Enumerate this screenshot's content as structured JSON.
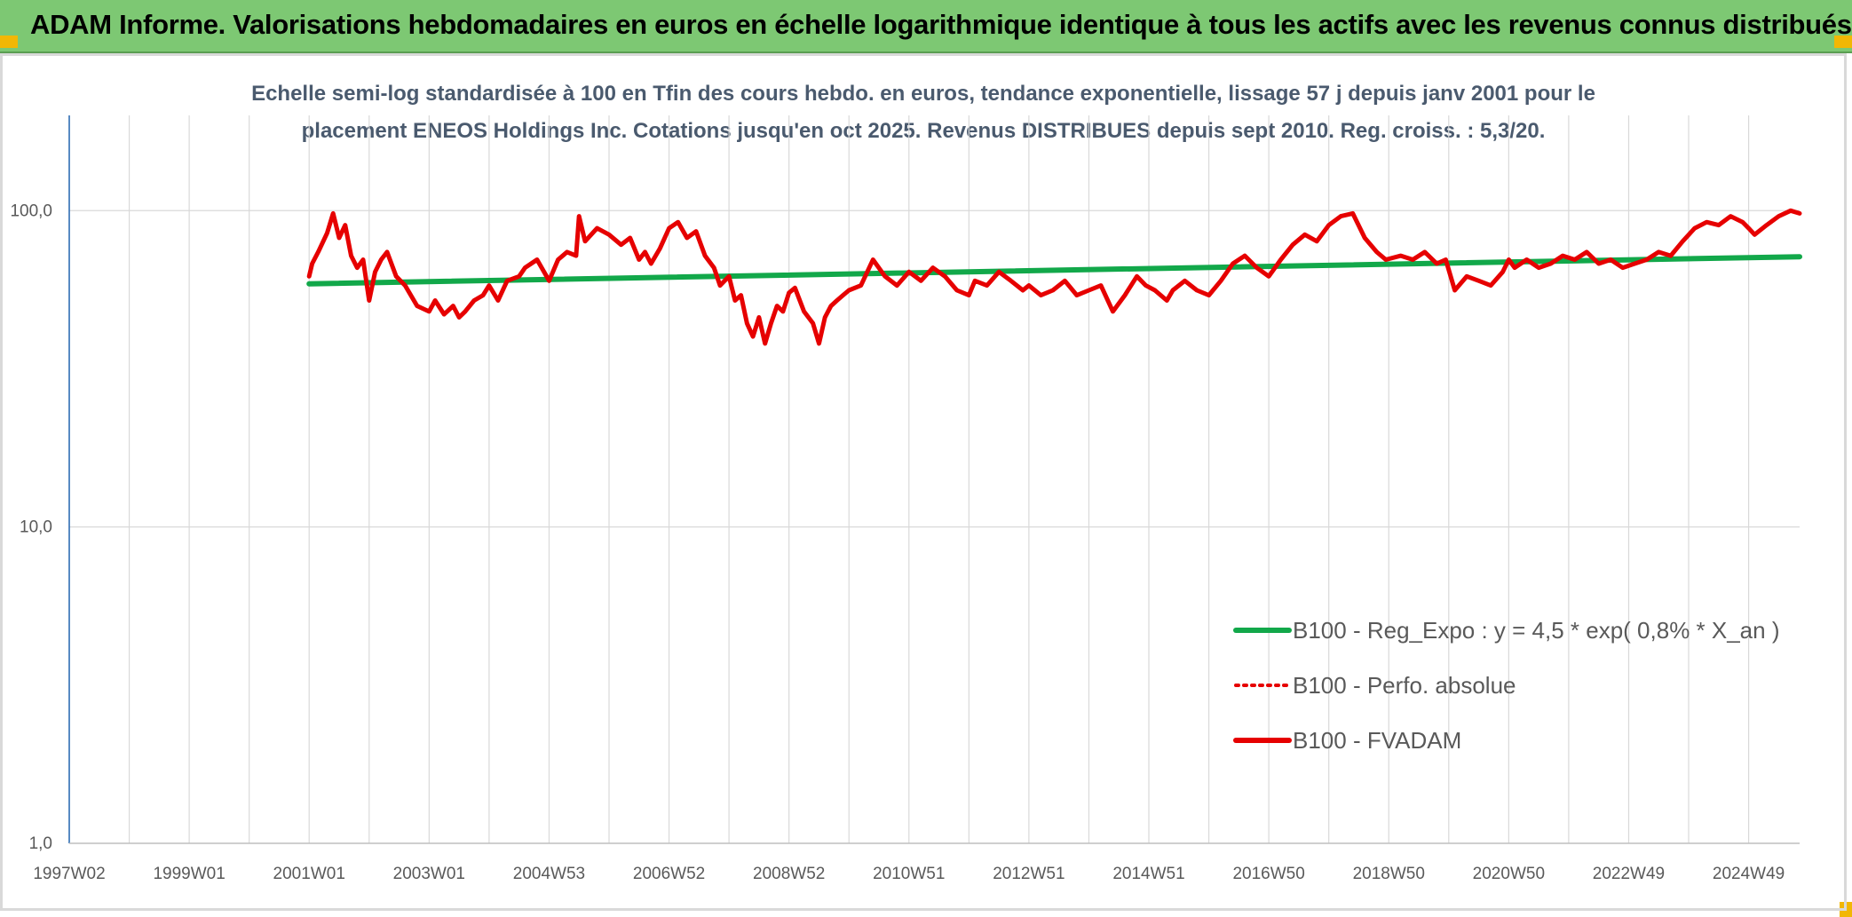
{
  "header": {
    "title": "ADAM Informe. Valorisations hebdomadaires en euros en échelle logarithmique identique à tous les actifs avec les revenus connus distribués"
  },
  "chart_data": {
    "type": "line",
    "title_line1": "Echelle semi-log standardisée à 100 en Tfin des cours hebdo. en euros, tendance exponentielle, lissage 57 j depuis janv 2001 pour le",
    "title_line2": "placement ENEOS Holdings Inc. Cotations jusqu'en oct 2025. Revenus DISTRIBUES depuis sept 2010. Reg. croiss. : 5,3/20.",
    "y_scale": "log",
    "ylim": [
      1,
      200
    ],
    "y_ticks": [
      {
        "value": 1,
        "label": "1,0"
      },
      {
        "value": 10,
        "label": "10,0"
      },
      {
        "value": 100,
        "label": "100,0"
      }
    ],
    "xlim": [
      1997.0,
      2025.85
    ],
    "x_ticks": [
      {
        "value": 1997.0,
        "label": "1997W02"
      },
      {
        "value": 1999.0,
        "label": "1999W01"
      },
      {
        "value": 2001.0,
        "label": "2001W01"
      },
      {
        "value": 2003.0,
        "label": "2003W01"
      },
      {
        "value": 2005.0,
        "label": "2004W53"
      },
      {
        "value": 2007.0,
        "label": "2006W52"
      },
      {
        "value": 2009.0,
        "label": "2008W52"
      },
      {
        "value": 2011.0,
        "label": "2010W51"
      },
      {
        "value": 2013.0,
        "label": "2012W51"
      },
      {
        "value": 2015.0,
        "label": "2014W51"
      },
      {
        "value": 2017.0,
        "label": "2016W50"
      },
      {
        "value": 2019.0,
        "label": "2018W50"
      },
      {
        "value": 2021.0,
        "label": "2020W50"
      },
      {
        "value": 2023.0,
        "label": "2022W49"
      },
      {
        "value": 2025.0,
        "label": "2024W49"
      }
    ],
    "grid": "vertical and horizontal",
    "legend_position": "bottom-right",
    "series": [
      {
        "name": "B100 - Reg_Expo : y = 4,5 * exp( 0,8% *  X_an )",
        "color": "#12a84a",
        "style": "solid",
        "x": [
          2001.0,
          2025.85
        ],
        "y": [
          58.7,
          71.5
        ]
      },
      {
        "name": "B100 - Perfo. absolue",
        "color": "#e60000",
        "style": "dotted",
        "x": [],
        "y": []
      },
      {
        "name": "B100 - FVADAM",
        "color": "#e60000",
        "style": "solid",
        "x": [
          2001.0,
          2001.05,
          2001.15,
          2001.3,
          2001.4,
          2001.5,
          2001.6,
          2001.7,
          2001.8,
          2001.9,
          2002.0,
          2002.1,
          2002.2,
          2002.3,
          2002.45,
          2002.6,
          2002.8,
          2003.0,
          2003.1,
          2003.25,
          2003.4,
          2003.5,
          2003.6,
          2003.75,
          2003.9,
          2004.0,
          2004.15,
          2004.3,
          2004.5,
          2004.6,
          2004.7,
          2004.8,
          2005.0,
          2005.15,
          2005.3,
          2005.45,
          2005.5,
          2005.6,
          2005.8,
          2006.0,
          2006.2,
          2006.35,
          2006.5,
          2006.6,
          2006.7,
          2006.85,
          2007.0,
          2007.15,
          2007.3,
          2007.45,
          2007.6,
          2007.75,
          2007.85,
          2008.0,
          2008.1,
          2008.2,
          2008.3,
          2008.4,
          2008.5,
          2008.6,
          2008.7,
          2008.8,
          2008.9,
          2009.0,
          2009.1,
          2009.25,
          2009.4,
          2009.5,
          2009.6,
          2009.7,
          2009.8,
          2009.9,
          2010.0,
          2010.2,
          2010.4,
          2010.6,
          2010.8,
          2011.0,
          2011.2,
          2011.4,
          2011.6,
          2011.8,
          2012.0,
          2012.1,
          2012.3,
          2012.5,
          2012.7,
          2012.9,
          2013.0,
          2013.2,
          2013.4,
          2013.6,
          2013.8,
          2014.0,
          2014.2,
          2014.4,
          2014.6,
          2014.8,
          2014.95,
          2015.1,
          2015.3,
          2015.4,
          2015.6,
          2015.8,
          2016.0,
          2016.2,
          2016.4,
          2016.6,
          2016.8,
          2017.0,
          2017.2,
          2017.4,
          2017.6,
          2017.8,
          2018.0,
          2018.2,
          2018.4,
          2018.6,
          2018.8,
          2018.95,
          2019.2,
          2019.4,
          2019.6,
          2019.8,
          2019.95,
          2020.1,
          2020.3,
          2020.5,
          2020.7,
          2020.9,
          2021.0,
          2021.1,
          2021.3,
          2021.5,
          2021.7,
          2021.9,
          2022.1,
          2022.3,
          2022.5,
          2022.7,
          2022.9,
          2023.1,
          2023.3,
          2023.5,
          2023.7,
          2023.9,
          2024.1,
          2024.3,
          2024.5,
          2024.7,
          2024.9,
          2025.0,
          2025.1,
          2025.3,
          2025.5,
          2025.7,
          2025.85
        ],
        "y": [
          62,
          68,
          74,
          85,
          98,
          82,
          90,
          72,
          66,
          70,
          52,
          64,
          70,
          74,
          62,
          58,
          50,
          48,
          52,
          47,
          50,
          46,
          48,
          52,
          54,
          58,
          52,
          60,
          62,
          66,
          68,
          70,
          60,
          70,
          74,
          72,
          96,
          80,
          88,
          84,
          78,
          82,
          70,
          74,
          68,
          76,
          88,
          92,
          82,
          86,
          72,
          66,
          58,
          62,
          52,
          54,
          44,
          40,
          46,
          38,
          44,
          50,
          48,
          55,
          57,
          48,
          44,
          38,
          46,
          50,
          52,
          54,
          56,
          58,
          70,
          62,
          58,
          64,
          60,
          66,
          62,
          56,
          54,
          60,
          58,
          64,
          60,
          56,
          58,
          54,
          56,
          60,
          54,
          56,
          58,
          48,
          54,
          62,
          58,
          56,
          52,
          56,
          60,
          56,
          54,
          60,
          68,
          72,
          66,
          62,
          70,
          78,
          84,
          80,
          90,
          96,
          98,
          82,
          74,
          70,
          72,
          70,
          74,
          68,
          70,
          56,
          62,
          60,
          58,
          64,
          70,
          66,
          70,
          66,
          68,
          72,
          70,
          74,
          68,
          70,
          66,
          68,
          70,
          74,
          72,
          80,
          88,
          92,
          90,
          96,
          92,
          88,
          84,
          90,
          96,
          100,
          98
        ]
      }
    ]
  }
}
